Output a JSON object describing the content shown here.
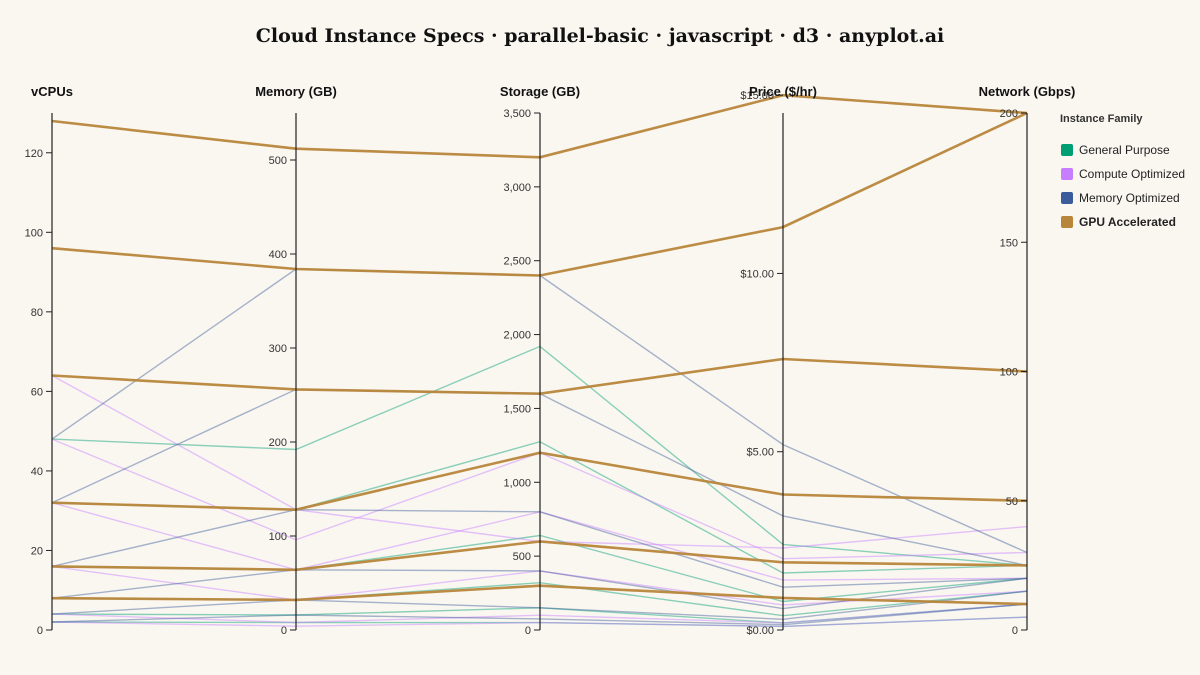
{
  "chart_data": {
    "type": "parallel-coordinates",
    "title": "Cloud Instance Specs · parallel-basic · javascript · d3 · anyplot.ai",
    "axes": [
      {
        "key": "vcpus",
        "label": "vCPUs",
        "range": [
          0,
          130
        ],
        "ticks": [
          0,
          20,
          40,
          60,
          80,
          100,
          120
        ],
        "tick_labels": [
          "0",
          "20",
          "40",
          "60",
          "80",
          "100",
          "120"
        ]
      },
      {
        "key": "memory",
        "label": "Memory (GB)",
        "range": [
          0,
          550
        ],
        "ticks": [
          0,
          100,
          200,
          300,
          400,
          500
        ],
        "tick_labels": [
          "0",
          "100",
          "200",
          "300",
          "400",
          "500"
        ]
      },
      {
        "key": "storage",
        "label": "Storage (GB)",
        "range": [
          0,
          3500
        ],
        "ticks": [
          0,
          500,
          1000,
          1500,
          2000,
          2500,
          3000,
          3500
        ],
        "tick_labels": [
          "0",
          "500",
          "1,000",
          "1,500",
          "2,000",
          "2,500",
          "3,000",
          "3,500"
        ]
      },
      {
        "key": "price",
        "label": "Price ($/hr)",
        "range": [
          0,
          14.5
        ],
        "ticks": [
          0,
          5,
          10,
          15
        ],
        "tick_labels": [
          "$0.00",
          "$5.00",
          "$10.00",
          "$15.00"
        ]
      },
      {
        "key": "network",
        "label": "Network (Gbps)",
        "range": [
          0,
          200
        ],
        "ticks": [
          0,
          50,
          100,
          150,
          200
        ],
        "tick_labels": [
          "0",
          "50",
          "100",
          "150",
          "200"
        ]
      }
    ],
    "legend": {
      "title": "Instance Family",
      "placement": "right",
      "highlighted": "GPU Accelerated"
    },
    "series": [
      {
        "name": "General Purpose",
        "color": "#009E73",
        "rows": [
          {
            "vcpus": 2,
            "memory": 8,
            "storage": 50,
            "price": 0.1,
            "network": 5
          },
          {
            "vcpus": 4,
            "memory": 16,
            "storage": 150,
            "price": 0.2,
            "network": 10
          },
          {
            "vcpus": 8,
            "memory": 32,
            "storage": 320,
            "price": 0.4,
            "network": 15
          },
          {
            "vcpus": 16,
            "memory": 64,
            "storage": 640,
            "price": 0.8,
            "network": 20
          },
          {
            "vcpus": 32,
            "memory": 128,
            "storage": 1275,
            "price": 1.6,
            "network": 25
          },
          {
            "vcpus": 48,
            "memory": 192,
            "storage": 1920,
            "price": 2.4,
            "network": 25
          }
        ]
      },
      {
        "name": "Compute Optimized",
        "color": "#C77DFF",
        "rows": [
          {
            "vcpus": 2,
            "memory": 4,
            "storage": 50,
            "price": 0.1,
            "network": 5
          },
          {
            "vcpus": 4,
            "memory": 8,
            "storage": 100,
            "price": 0.2,
            "network": 10
          },
          {
            "vcpus": 16,
            "memory": 32,
            "storage": 400,
            "price": 0.7,
            "network": 15
          },
          {
            "vcpus": 32,
            "memory": 64,
            "storage": 800,
            "price": 1.4,
            "network": 20
          },
          {
            "vcpus": 48,
            "memory": 96,
            "storage": 1200,
            "price": 2.0,
            "network": 30
          },
          {
            "vcpus": 64,
            "memory": 128,
            "storage": 600,
            "price": 2.3,
            "network": 40
          }
        ]
      },
      {
        "name": "Memory Optimized",
        "color": "#3B5B9A",
        "rows": [
          {
            "vcpus": 2,
            "memory": 16,
            "storage": 75,
            "price": 0.15,
            "network": 10
          },
          {
            "vcpus": 4,
            "memory": 32,
            "storage": 150,
            "price": 0.3,
            "network": 15
          },
          {
            "vcpus": 8,
            "memory": 64,
            "storage": 400,
            "price": 0.6,
            "network": 20
          },
          {
            "vcpus": 16,
            "memory": 128,
            "storage": 800,
            "price": 1.2,
            "network": 20
          },
          {
            "vcpus": 32,
            "memory": 256,
            "storage": 1600,
            "price": 3.2,
            "network": 25
          },
          {
            "vcpus": 48,
            "memory": 384,
            "storage": 2400,
            "price": 5.2,
            "network": 30
          }
        ]
      },
      {
        "name": "GPU Accelerated",
        "color": "#B8863B",
        "rows": [
          {
            "vcpus": 8,
            "memory": 32,
            "storage": 300,
            "price": 0.9,
            "network": 10
          },
          {
            "vcpus": 16,
            "memory": 64,
            "storage": 600,
            "price": 1.9,
            "network": 25
          },
          {
            "vcpus": 32,
            "memory": 128,
            "storage": 1200,
            "price": 3.8,
            "network": 50
          },
          {
            "vcpus": 64,
            "memory": 256,
            "storage": 1600,
            "price": 7.6,
            "network": 100
          },
          {
            "vcpus": 96,
            "memory": 384,
            "storage": 2400,
            "price": 11.3,
            "network": 200
          },
          {
            "vcpus": 128,
            "memory": 512,
            "storage": 3200,
            "price": 15.0,
            "network": 200
          }
        ]
      }
    ]
  }
}
